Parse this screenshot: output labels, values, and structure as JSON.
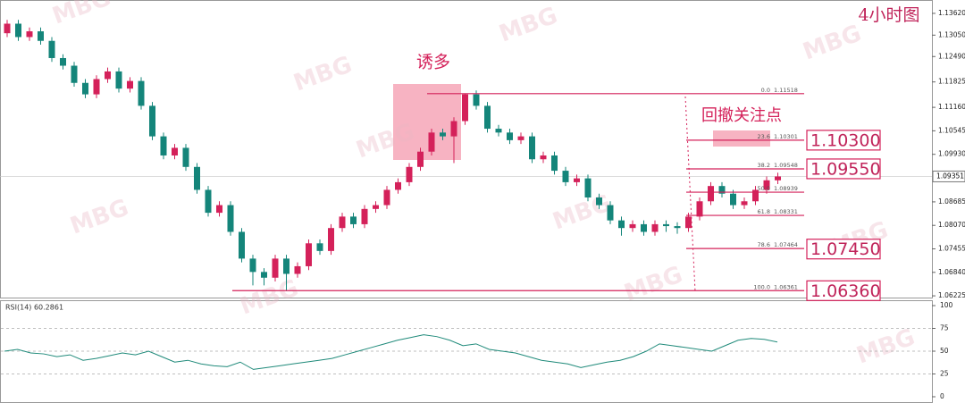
{
  "chart_data": [
    {
      "type": "candlestick",
      "corner_title": "4小时图",
      "annotations": [
        "诱多",
        "回撤关注点"
      ],
      "watermark": "MBG",
      "up_color": "#d4215a",
      "down_color": "#14857a",
      "ylim": [
        1.0618,
        1.1397
      ],
      "yticks": [
        {
          "value": 1.1362,
          "label": "1.13620"
        },
        {
          "value": 1.1305,
          "label": "1.13050"
        },
        {
          "value": 1.1249,
          "label": "1.12490"
        },
        1.11825,
        {
          "value": 1.1116,
          "label": "1.11160"
        },
        1.10545,
        {
          "value": 1.0993,
          "label": "1.09930"
        },
        1.08685,
        {
          "value": 1.0807,
          "label": "1.08070"
        },
        1.07455,
        {
          "value": 1.0684,
          "label": "1.06840"
        },
        1.06225
      ],
      "current_price": 1.09351,
      "open": [
        1.131,
        1.1335,
        1.13,
        1.1315,
        1.129,
        1.1245,
        1.1225,
        1.118,
        1.115,
        1.119,
        1.121,
        1.1165,
        1.1185,
        1.112,
        1.104,
        1.099,
        1.101,
        1.096,
        1.09,
        1.084,
        1.086,
        1.079,
        1.072,
        1.0685,
        1.067,
        1.072,
        1.068,
        1.07,
        1.076,
        1.074,
        1.08,
        1.083,
        1.081,
        1.085,
        1.086,
        1.09,
        1.092,
        1.096,
        1.1,
        1.105,
        1.104,
        1.108,
        1.115,
        1.112,
        1.106,
        1.105,
        1.103,
        1.104,
        1.098,
        1.099,
        1.095,
        1.092,
        1.093,
        1.088,
        1.086,
        1.082,
        1.08,
        1.081,
        1.079,
        1.081,
        1.0805,
        1.08,
        1.083,
        1.087,
        1.091,
        1.089,
        1.086,
        1.087,
        1.09,
        1.0925
      ],
      "high": [
        1.1345,
        1.1345,
        1.1325,
        1.1325,
        1.13,
        1.1255,
        1.1235,
        1.119,
        1.12,
        1.122,
        1.122,
        1.1195,
        1.1195,
        1.113,
        1.105,
        1.102,
        1.102,
        1.097,
        1.091,
        1.087,
        1.087,
        1.08,
        1.073,
        1.0695,
        1.073,
        1.073,
        1.071,
        1.077,
        1.077,
        1.081,
        1.084,
        1.084,
        1.086,
        1.087,
        1.091,
        1.093,
        1.097,
        1.101,
        1.106,
        1.106,
        1.109,
        1.1152,
        1.116,
        1.113,
        1.107,
        1.106,
        1.105,
        1.105,
        1.1,
        1.1,
        1.096,
        1.094,
        1.094,
        1.089,
        1.087,
        1.083,
        1.082,
        1.082,
        1.082,
        1.082,
        1.0815,
        1.084,
        1.088,
        1.092,
        1.092,
        1.09,
        1.088,
        1.091,
        1.0935,
        1.0945
      ],
      "low": [
        1.13,
        1.129,
        1.129,
        1.128,
        1.1235,
        1.1215,
        1.117,
        1.114,
        1.114,
        1.118,
        1.1155,
        1.1155,
        1.111,
        1.103,
        1.098,
        1.098,
        1.095,
        1.089,
        1.083,
        1.083,
        1.078,
        1.071,
        1.065,
        1.065,
        1.066,
        1.0636,
        1.067,
        1.069,
        1.073,
        1.073,
        1.079,
        1.08,
        1.08,
        1.084,
        1.085,
        1.089,
        1.091,
        1.095,
        1.099,
        1.103,
        1.097,
        1.107,
        1.111,
        1.105,
        1.104,
        1.102,
        1.102,
        1.097,
        1.097,
        1.094,
        1.091,
        1.091,
        1.087,
        1.085,
        1.081,
        1.078,
        1.079,
        1.078,
        1.078,
        1.079,
        1.0785,
        1.079,
        1.082,
        1.086,
        1.088,
        1.085,
        1.085,
        1.086,
        1.089,
        1.0915
      ],
      "close": [
        1.1335,
        1.13,
        1.1315,
        1.129,
        1.1245,
        1.1225,
        1.118,
        1.115,
        1.119,
        1.121,
        1.1165,
        1.1185,
        1.112,
        1.104,
        1.099,
        1.101,
        1.096,
        1.09,
        1.084,
        1.086,
        1.079,
        1.072,
        1.0685,
        1.067,
        1.072,
        1.068,
        1.07,
        1.076,
        1.074,
        1.08,
        1.083,
        1.081,
        1.085,
        1.086,
        1.09,
        1.092,
        1.096,
        1.1,
        1.105,
        1.104,
        1.108,
        1.115,
        1.112,
        1.106,
        1.105,
        1.103,
        1.104,
        1.098,
        1.099,
        1.095,
        1.092,
        1.093,
        1.088,
        1.086,
        1.082,
        1.08,
        1.081,
        1.079,
        1.081,
        1.0805,
        1.08,
        1.083,
        1.087,
        1.091,
        1.089,
        1.086,
        1.087,
        1.09,
        1.0925,
        1.0935
      ],
      "fib_levels": [
        {
          "ratio": "0.0",
          "price": 1.11518
        },
        {
          "ratio": 23.6,
          "price": 1.10301
        },
        {
          "ratio": 38.2,
          "price": 1.09548
        },
        {
          "ratio": "50.0",
          "price": 1.08939
        },
        {
          "ratio": 61.8,
          "price": 1.08331
        },
        {
          "ratio": 78.6,
          "price": 1.07464
        },
        {
          "ratio": "100.0",
          "price": 1.06361
        }
      ],
      "key_levels": [
        {
          "value": 1.103,
          "label": "1.10300"
        },
        {
          "value": 1.0955,
          "label": "1.09550"
        },
        {
          "value": 1.0745,
          "label": "1.07450"
        },
        {
          "value": 1.0636,
          "label": "1.06360"
        }
      ]
    },
    {
      "type": "line",
      "title": "RSI(14) 60.2861",
      "color": "#1f8a7a",
      "ylim": [
        0,
        100
      ],
      "yticks": [
        100,
        75,
        50,
        25,
        0
      ],
      "values": [
        50,
        52,
        48,
        47,
        44,
        46,
        40,
        42,
        45,
        48,
        46,
        50,
        44,
        38,
        40,
        36,
        34,
        33,
        38,
        30,
        32,
        34,
        36,
        38,
        40,
        42,
        46,
        50,
        54,
        58,
        62,
        65,
        68,
        66,
        62,
        56,
        58,
        52,
        50,
        48,
        44,
        40,
        38,
        36,
        32,
        35,
        38,
        40,
        44,
        50,
        58,
        56,
        54,
        52,
        50,
        56,
        62,
        64,
        63,
        60
      ]
    }
  ]
}
